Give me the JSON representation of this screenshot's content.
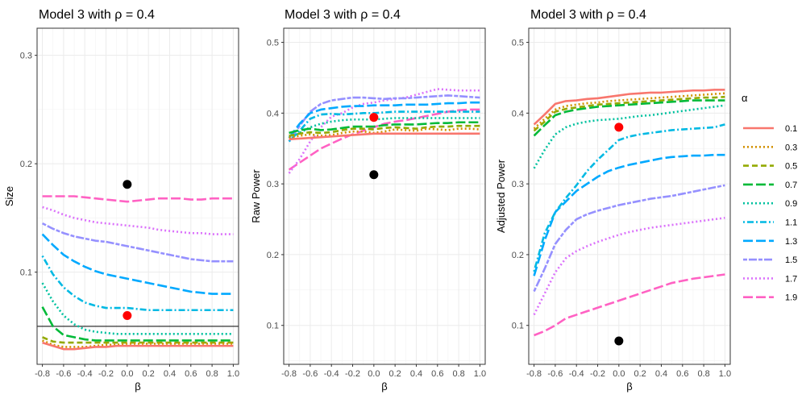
{
  "chart_data": [
    {
      "type": "line",
      "title": "Model 3 with ρ =  0.4",
      "xlabel": "β",
      "ylabel": "Size",
      "xlim": [
        -0.85,
        1.05
      ],
      "ylim": [
        0.015,
        0.325
      ],
      "xticks": [
        "-0.8",
        "-0.6",
        "-0.4",
        "-0.2",
        "0.0",
        "0.2",
        "0.4",
        "0.6",
        "0.8",
        "1.0"
      ],
      "yticks": [
        "0.1",
        "0.2",
        "0.3"
      ],
      "grid": true,
      "hline": 0.05,
      "x": [
        -0.8,
        -0.7,
        -0.6,
        -0.5,
        -0.4,
        -0.3,
        -0.2,
        -0.1,
        0.0,
        0.1,
        0.2,
        0.3,
        0.4,
        0.5,
        0.6,
        0.7,
        0.8,
        0.9,
        1.0
      ],
      "series": [
        {
          "name": "0.1",
          "values": [
            0.035,
            0.032,
            0.029,
            0.029,
            0.03,
            0.031,
            0.031,
            0.032,
            0.032,
            0.032,
            0.032,
            0.032,
            0.032,
            0.032,
            0.032,
            0.032,
            0.032,
            0.032,
            0.032
          ]
        },
        {
          "name": "0.3",
          "values": [
            0.037,
            0.033,
            0.031,
            0.031,
            0.031,
            0.032,
            0.033,
            0.033,
            0.034,
            0.034,
            0.034,
            0.034,
            0.034,
            0.034,
            0.034,
            0.034,
            0.034,
            0.034,
            0.034
          ]
        },
        {
          "name": "0.5",
          "values": [
            0.04,
            0.036,
            0.035,
            0.035,
            0.035,
            0.035,
            0.035,
            0.035,
            0.035,
            0.035,
            0.035,
            0.035,
            0.035,
            0.035,
            0.035,
            0.035,
            0.035,
            0.035,
            0.035
          ]
        },
        {
          "name": "0.7",
          "values": [
            0.068,
            0.05,
            0.042,
            0.04,
            0.038,
            0.037,
            0.037,
            0.037,
            0.037,
            0.037,
            0.037,
            0.037,
            0.037,
            0.037,
            0.037,
            0.037,
            0.037,
            0.037,
            0.037
          ]
        },
        {
          "name": "0.9",
          "values": [
            0.09,
            0.073,
            0.06,
            0.052,
            0.047,
            0.045,
            0.044,
            0.043,
            0.043,
            0.043,
            0.043,
            0.043,
            0.043,
            0.043,
            0.043,
            0.043,
            0.043,
            0.043,
            0.043
          ]
        },
        {
          "name": "1.1",
          "values": [
            0.115,
            0.098,
            0.086,
            0.078,
            0.072,
            0.069,
            0.067,
            0.067,
            0.067,
            0.066,
            0.065,
            0.065,
            0.065,
            0.065,
            0.065,
            0.065,
            0.065,
            0.065,
            0.065
          ]
        },
        {
          "name": "1.3",
          "values": [
            0.135,
            0.125,
            0.116,
            0.11,
            0.105,
            0.101,
            0.098,
            0.096,
            0.094,
            0.092,
            0.09,
            0.088,
            0.086,
            0.084,
            0.082,
            0.081,
            0.08,
            0.08,
            0.08
          ]
        },
        {
          "name": "1.5",
          "values": [
            0.145,
            0.14,
            0.136,
            0.133,
            0.131,
            0.129,
            0.128,
            0.126,
            0.124,
            0.122,
            0.12,
            0.118,
            0.116,
            0.114,
            0.112,
            0.111,
            0.11,
            0.11,
            0.11
          ]
        },
        {
          "name": "1.7",
          "values": [
            0.16,
            0.157,
            0.153,
            0.15,
            0.148,
            0.146,
            0.145,
            0.144,
            0.143,
            0.142,
            0.141,
            0.139,
            0.138,
            0.137,
            0.136,
            0.136,
            0.135,
            0.135,
            0.135
          ]
        },
        {
          "name": "1.9",
          "values": [
            0.17,
            0.17,
            0.17,
            0.17,
            0.169,
            0.168,
            0.167,
            0.166,
            0.165,
            0.166,
            0.167,
            0.168,
            0.168,
            0.168,
            0.167,
            0.167,
            0.168,
            0.168,
            0.168
          ]
        }
      ],
      "points": [
        {
          "x": 0.0,
          "y": 0.181,
          "color": "#000000"
        },
        {
          "x": 0.0,
          "y": 0.06,
          "color": "#ff0000"
        }
      ]
    },
    {
      "type": "line",
      "title": "Model 3 with ρ =  0.4",
      "xlabel": "β",
      "ylabel": "Raw Power",
      "xlim": [
        -0.85,
        1.05
      ],
      "ylim": [
        0.045,
        0.52
      ],
      "xticks": [
        "-0.8",
        "-0.6",
        "-0.4",
        "-0.2",
        "0.0",
        "0.2",
        "0.4",
        "0.6",
        "0.8",
        "1.0"
      ],
      "yticks": [
        "0.1",
        "0.2",
        "0.3",
        "0.4",
        "0.5"
      ],
      "grid": true,
      "x": [
        -0.8,
        -0.7,
        -0.6,
        -0.5,
        -0.4,
        -0.3,
        -0.2,
        -0.1,
        0.0,
        0.1,
        0.2,
        0.3,
        0.4,
        0.5,
        0.6,
        0.7,
        0.8,
        0.9,
        1.0
      ],
      "series": [
        {
          "name": "0.1",
          "values": [
            0.363,
            0.364,
            0.365,
            0.366,
            0.367,
            0.368,
            0.369,
            0.37,
            0.371,
            0.371,
            0.371,
            0.371,
            0.371,
            0.371,
            0.371,
            0.371,
            0.371,
            0.371,
            0.371
          ]
        },
        {
          "name": "0.3",
          "values": [
            0.365,
            0.368,
            0.37,
            0.368,
            0.369,
            0.372,
            0.374,
            0.374,
            0.372,
            0.374,
            0.377,
            0.376,
            0.375,
            0.378,
            0.377,
            0.376,
            0.378,
            0.378,
            0.377
          ]
        },
        {
          "name": "0.5",
          "values": [
            0.368,
            0.371,
            0.373,
            0.372,
            0.373,
            0.376,
            0.378,
            0.378,
            0.377,
            0.379,
            0.38,
            0.379,
            0.378,
            0.38,
            0.381,
            0.381,
            0.382,
            0.382,
            0.382
          ]
        },
        {
          "name": "0.7",
          "values": [
            0.372,
            0.376,
            0.378,
            0.376,
            0.377,
            0.379,
            0.381,
            0.381,
            0.381,
            0.383,
            0.384,
            0.384,
            0.384,
            0.385,
            0.386,
            0.386,
            0.387,
            0.387,
            0.387
          ]
        },
        {
          "name": "0.9",
          "values": [
            0.365,
            0.372,
            0.38,
            0.385,
            0.388,
            0.39,
            0.391,
            0.391,
            0.391,
            0.392,
            0.393,
            0.393,
            0.393,
            0.393,
            0.393,
            0.393,
            0.393,
            0.393,
            0.393
          ]
        },
        {
          "name": "1.1",
          "values": [
            0.36,
            0.375,
            0.392,
            0.398,
            0.399,
            0.398,
            0.399,
            0.4,
            0.4,
            0.401,
            0.402,
            0.402,
            0.402,
            0.402,
            0.402,
            0.402,
            0.402,
            0.402,
            0.402
          ]
        },
        {
          "name": "1.3",
          "values": [
            0.365,
            0.385,
            0.4,
            0.405,
            0.407,
            0.409,
            0.41,
            0.41,
            0.411,
            0.411,
            0.411,
            0.412,
            0.412,
            0.412,
            0.413,
            0.414,
            0.414,
            0.415,
            0.415
          ]
        },
        {
          "name": "1.5",
          "values": [
            0.36,
            0.382,
            0.402,
            0.413,
            0.418,
            0.42,
            0.422,
            0.422,
            0.421,
            0.42,
            0.421,
            0.421,
            0.422,
            0.423,
            0.424,
            0.425,
            0.424,
            0.423,
            0.422
          ]
        },
        {
          "name": "1.7",
          "values": [
            0.315,
            0.335,
            0.36,
            0.38,
            0.395,
            0.4,
            0.408,
            0.413,
            0.415,
            0.418,
            0.42,
            0.422,
            0.426,
            0.43,
            0.434,
            0.433,
            0.432,
            0.432,
            0.432
          ]
        },
        {
          "name": "1.9",
          "values": [
            0.32,
            0.33,
            0.34,
            0.35,
            0.357,
            0.364,
            0.37,
            0.375,
            0.38,
            0.385,
            0.388,
            0.39,
            0.393,
            0.396,
            0.399,
            0.402,
            0.404,
            0.405,
            0.405
          ]
        }
      ],
      "points": [
        {
          "x": 0.0,
          "y": 0.313,
          "color": "#000000"
        },
        {
          "x": 0.0,
          "y": 0.394,
          "color": "#ff0000"
        }
      ]
    },
    {
      "type": "line",
      "title": "Model 3 with ρ =  0.4",
      "xlabel": "β",
      "ylabel": "Adjusted Power",
      "xlim": [
        -0.85,
        1.05
      ],
      "ylim": [
        0.045,
        0.52
      ],
      "xticks": [
        "-0.8",
        "-0.6",
        "-0.4",
        "-0.2",
        "0.0",
        "0.2",
        "0.4",
        "0.6",
        "0.8",
        "1.0"
      ],
      "yticks": [
        "0.1",
        "0.2",
        "0.3",
        "0.4",
        "0.5"
      ],
      "grid": true,
      "x": [
        -0.8,
        -0.7,
        -0.6,
        -0.5,
        -0.4,
        -0.3,
        -0.2,
        -0.1,
        0.0,
        0.1,
        0.2,
        0.3,
        0.4,
        0.5,
        0.6,
        0.7,
        0.8,
        0.9,
        1.0
      ],
      "series": [
        {
          "name": "0.1",
          "values": [
            0.384,
            0.398,
            0.413,
            0.417,
            0.418,
            0.42,
            0.421,
            0.423,
            0.425,
            0.427,
            0.428,
            0.429,
            0.429,
            0.43,
            0.431,
            0.432,
            0.432,
            0.433,
            0.433
          ]
        },
        {
          "name": "0.3",
          "values": [
            0.378,
            0.392,
            0.405,
            0.41,
            0.412,
            0.414,
            0.415,
            0.417,
            0.418,
            0.419,
            0.42,
            0.421,
            0.422,
            0.423,
            0.424,
            0.425,
            0.426,
            0.427,
            0.428
          ]
        },
        {
          "name": "0.5",
          "values": [
            0.375,
            0.388,
            0.402,
            0.406,
            0.408,
            0.41,
            0.412,
            0.413,
            0.414,
            0.415,
            0.416,
            0.417,
            0.418,
            0.419,
            0.42,
            0.421,
            0.422,
            0.422,
            0.423
          ]
        },
        {
          "name": "0.7",
          "values": [
            0.368,
            0.383,
            0.397,
            0.402,
            0.405,
            0.407,
            0.409,
            0.41,
            0.411,
            0.412,
            0.413,
            0.414,
            0.415,
            0.416,
            0.417,
            0.418,
            0.418,
            0.418,
            0.418
          ]
        },
        {
          "name": "0.9",
          "values": [
            0.322,
            0.348,
            0.37,
            0.38,
            0.385,
            0.388,
            0.39,
            0.391,
            0.392,
            0.394,
            0.396,
            0.397,
            0.399,
            0.401,
            0.403,
            0.405,
            0.407,
            0.409,
            0.411
          ]
        },
        {
          "name": "1.1",
          "values": [
            0.176,
            0.23,
            0.26,
            0.28,
            0.298,
            0.318,
            0.334,
            0.348,
            0.362,
            0.367,
            0.37,
            0.372,
            0.374,
            0.376,
            0.377,
            0.378,
            0.379,
            0.38,
            0.384
          ]
        },
        {
          "name": "1.3",
          "values": [
            0.17,
            0.22,
            0.26,
            0.275,
            0.29,
            0.3,
            0.31,
            0.318,
            0.323,
            0.327,
            0.33,
            0.333,
            0.336,
            0.338,
            0.339,
            0.34,
            0.34,
            0.341,
            0.341
          ]
        },
        {
          "name": "1.5",
          "values": [
            0.148,
            0.18,
            0.215,
            0.235,
            0.25,
            0.257,
            0.262,
            0.266,
            0.27,
            0.273,
            0.276,
            0.279,
            0.281,
            0.283,
            0.286,
            0.289,
            0.292,
            0.295,
            0.298
          ]
        },
        {
          "name": "1.7",
          "values": [
            0.115,
            0.145,
            0.175,
            0.195,
            0.205,
            0.212,
            0.218,
            0.223,
            0.228,
            0.232,
            0.235,
            0.238,
            0.24,
            0.242,
            0.244,
            0.246,
            0.248,
            0.25,
            0.252
          ]
        },
        {
          "name": "1.9",
          "values": [
            0.086,
            0.092,
            0.1,
            0.11,
            0.115,
            0.12,
            0.125,
            0.13,
            0.135,
            0.14,
            0.145,
            0.15,
            0.155,
            0.16,
            0.163,
            0.166,
            0.168,
            0.17,
            0.172
          ]
        }
      ],
      "points": [
        {
          "x": 0.0,
          "y": 0.078,
          "color": "#000000"
        },
        {
          "x": 0.0,
          "y": 0.38,
          "color": "#ff0000"
        }
      ]
    }
  ],
  "legend": {
    "title": "α",
    "position": "right",
    "items": [
      {
        "label": "0.1",
        "color": "#F8766D",
        "dash": "solid"
      },
      {
        "label": "0.3",
        "color": "#D39200",
        "dash": "dotted"
      },
      {
        "label": "0.5",
        "color": "#93AA00",
        "dash": "dashed"
      },
      {
        "label": "0.7",
        "color": "#00BA38",
        "dash": "longdash"
      },
      {
        "label": "0.9",
        "color": "#00C19F",
        "dash": "dotted"
      },
      {
        "label": "1.1",
        "color": "#00B9E3",
        "dash": "dotdash"
      },
      {
        "label": "1.3",
        "color": "#00A9FF",
        "dash": "longdash"
      },
      {
        "label": "1.5",
        "color": "#9590FF",
        "dash": "twodash"
      },
      {
        "label": "1.7",
        "color": "#DB72FB",
        "dash": "dotted"
      },
      {
        "label": "1.9",
        "color": "#FF61C3",
        "dash": "longdash"
      }
    ]
  }
}
